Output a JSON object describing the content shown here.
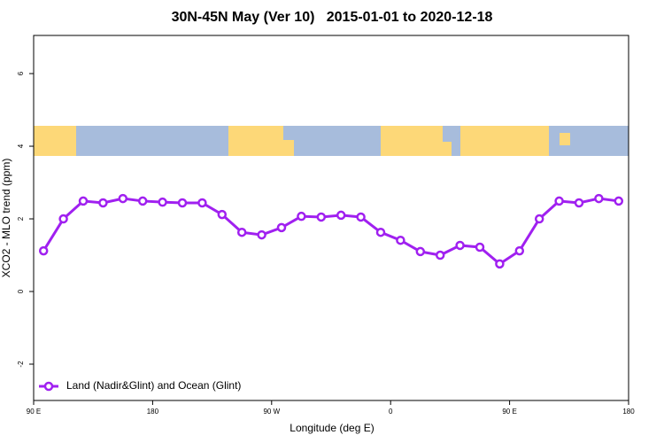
{
  "chart_data": {
    "type": "line",
    "title": "30N-45N May (Ver 10)   2015-01-01 to 2020-12-18",
    "xlabel": "Longitude (deg E)",
    "ylabel": "XCO2 - MLO trend (ppm)",
    "x": [
      97.5,
      112.5,
      127.5,
      142.5,
      157.5,
      172.5,
      187.5,
      202.5,
      217.5,
      232.5,
      247.5,
      262.5,
      277.5,
      292.5,
      307.5,
      322.5,
      337.5,
      352.5,
      367.5,
      382.5,
      397.5,
      412.5,
      427.5,
      442.5,
      457.5,
      472.5,
      487.5,
      502.5,
      517.5,
      532.5
    ],
    "series": [
      {
        "name": "Land (Nadir&Glint) and Ocean (Glint)",
        "color": "#a020f0",
        "values": [
          1.12,
          2.0,
          2.49,
          2.44,
          2.56,
          2.49,
          2.46,
          2.44,
          2.44,
          2.12,
          1.63,
          1.56,
          1.76,
          2.07,
          2.05,
          2.1,
          2.05,
          1.63,
          1.41,
          1.1,
          1.0,
          1.27,
          1.22,
          0.76,
          1.12,
          2.0,
          2.49,
          2.44,
          2.56,
          2.49
        ]
      }
    ],
    "xlim": [
      90,
      540
    ],
    "xticks": [
      {
        "value": 90,
        "label": "90 E"
      },
      180,
      {
        "value": 270,
        "label": "90 W"
      },
      {
        "value": 360,
        "label": "0"
      },
      {
        "value": 450,
        "label": "90 E"
      },
      {
        "value": 540,
        "label": "180"
      }
    ],
    "ylim": [
      -3,
      7.05
    ],
    "yticks": [
      -2,
      0,
      2,
      4,
      6
    ],
    "legend": "bottom-left"
  }
}
